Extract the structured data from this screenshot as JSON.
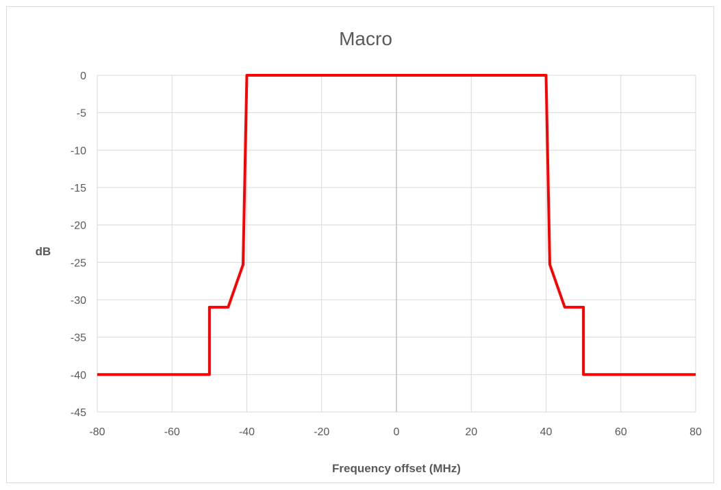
{
  "chart_data": {
    "type": "line",
    "title": "Macro",
    "xlabel": "Frequency offset (MHz)",
    "ylabel": "dB",
    "xlim": [
      -80,
      80
    ],
    "ylim": [
      -45,
      0
    ],
    "x_ticks": [
      -80,
      -60,
      -40,
      -20,
      0,
      20,
      40,
      60,
      80
    ],
    "y_ticks": [
      0,
      -5,
      -10,
      -15,
      -20,
      -25,
      -30,
      -35,
      -40,
      -45
    ],
    "grid": true,
    "legend": "none",
    "series": [
      {
        "color": "#ff0000",
        "points": [
          [
            -80,
            -40
          ],
          [
            -50,
            -40
          ],
          [
            -50,
            -31
          ],
          [
            -45,
            -31
          ],
          [
            -41,
            -25.3
          ],
          [
            -40,
            0
          ],
          [
            40,
            0
          ],
          [
            41,
            -25.3
          ],
          [
            45,
            -31
          ],
          [
            50,
            -31
          ],
          [
            50,
            -40
          ],
          [
            80,
            -40
          ]
        ]
      }
    ]
  }
}
